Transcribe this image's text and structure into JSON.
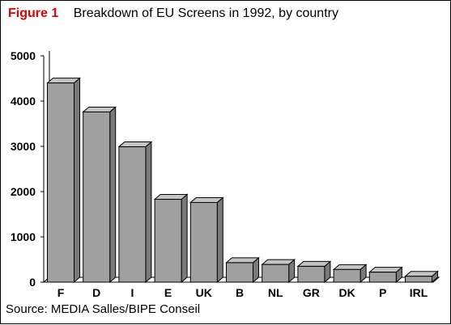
{
  "figure_label": "Figure 1",
  "title": "Breakdown of EU Screens in 1992, by country",
  "source": "Source: MEDIA Salles/BIPE Conseil",
  "colors": {
    "bar": "#a0a0a0",
    "bar_top": "#c4c4c4",
    "bar_side": "#7a7a7a",
    "label": "#e00000"
  },
  "chart_data": {
    "type": "bar",
    "title": "Breakdown of EU Screens in 1992, by country",
    "xlabel": "",
    "ylabel": "",
    "categories": [
      "F",
      "D",
      "I",
      "E",
      "UK",
      "B",
      "NL",
      "GR",
      "DK",
      "P",
      "IRL"
    ],
    "values": [
      4400,
      3760,
      2990,
      1830,
      1760,
      430,
      390,
      350,
      280,
      220,
      130
    ],
    "ylim": [
      0,
      5000
    ],
    "yticks": [
      0,
      1000,
      2000,
      3000,
      4000,
      5000
    ],
    "grid": false,
    "legend": "none",
    "style": "3d"
  }
}
